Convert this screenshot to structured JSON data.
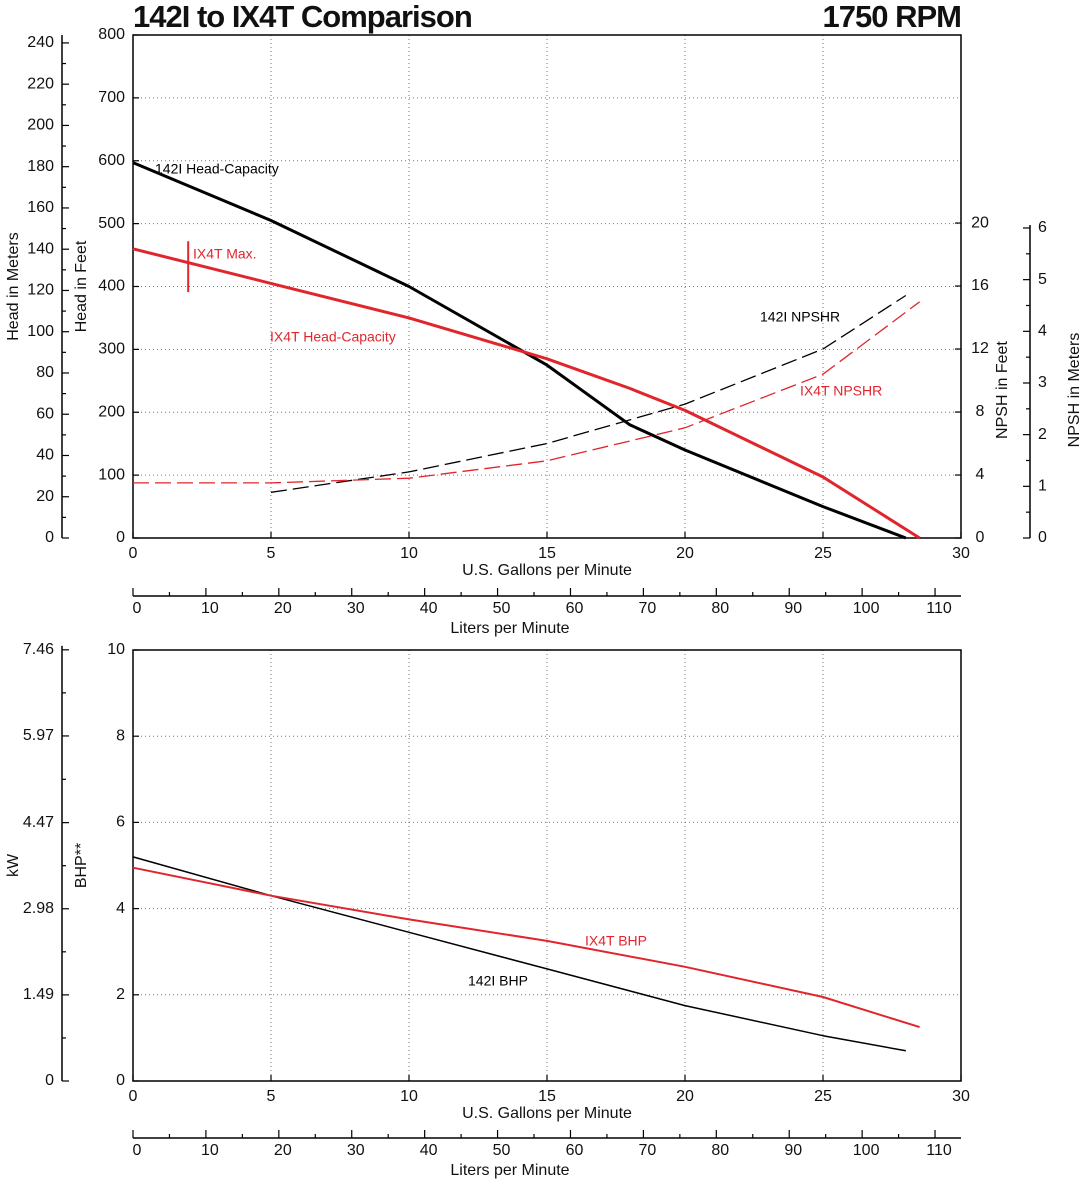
{
  "chart_data": [
    {
      "type": "line",
      "title": "142I to IX4T Comparison",
      "subtitle": "1750 RPM",
      "xlabel": "U.S. Gallons per Minute",
      "xlim": [
        0,
        30
      ],
      "xticks": [
        0,
        5,
        10,
        15,
        20,
        25,
        30
      ],
      "x2label": "Liters per Minute",
      "x2lim": [
        0,
        113.56
      ],
      "x2ticks": [
        0,
        10,
        20,
        30,
        40,
        50,
        60,
        70,
        80,
        90,
        100,
        110
      ],
      "ylabel": "Head in Feet",
      "ylim": [
        0,
        800
      ],
      "yticks": [
        0,
        100,
        200,
        300,
        400,
        500,
        600,
        700,
        800
      ],
      "y3label": "Head in Meters",
      "y3lim": [
        0,
        243.84
      ],
      "y3ticks": [
        0,
        20,
        40,
        60,
        80,
        100,
        120,
        140,
        160,
        180,
        200,
        220,
        240
      ],
      "y2label": "NPSH in Feet",
      "y2lim": [
        0,
        31.94
      ],
      "y2ticks": [
        0,
        4,
        8,
        12,
        16,
        20
      ],
      "y4label": "NPSH in Meters",
      "y4lim": [
        0,
        9.735
      ],
      "y4ticks": [
        0,
        1,
        2,
        3,
        4,
        5,
        6
      ],
      "grid": true,
      "series": [
        {
          "name": "142I Head-Capacity",
          "color": "#000000",
          "dashed": false,
          "width": 3,
          "x": [
            0,
            5,
            10,
            15,
            18,
            20,
            25,
            28
          ],
          "values": [
            597,
            505,
            400,
            275,
            180,
            140,
            50,
            0
          ]
        },
        {
          "name": "IX4T Head-Capacity",
          "color": "#e0262c",
          "dashed": false,
          "width": 3,
          "x": [
            0,
            5,
            10,
            15,
            18,
            20,
            25,
            28.5
          ],
          "values": [
            460,
            405,
            350,
            285,
            238,
            203,
            97,
            0
          ]
        },
        {
          "name": "142I NPSHR",
          "color": "#000000",
          "dashed": true,
          "width": 1.3,
          "axis": "y2",
          "x": [
            5,
            10,
            15,
            20,
            25,
            28
          ],
          "values": [
            2.9,
            4.2,
            6.0,
            8.5,
            12.0,
            15.4
          ]
        },
        {
          "name": "IX4T NPSHR",
          "color": "#e0262c",
          "dashed": true,
          "width": 1.3,
          "axis": "y2",
          "x": [
            0,
            5,
            10,
            15,
            20,
            25,
            28.5
          ],
          "values": [
            3.5,
            3.5,
            3.8,
            4.9,
            7.0,
            10.4,
            15.0
          ]
        }
      ],
      "annotations": [
        {
          "text": "IX4T Max.",
          "color": "#e0262c",
          "x": 2,
          "y": [
            391,
            472
          ]
        }
      ]
    },
    {
      "type": "line",
      "xlabel": "U.S. Gallons per Minute",
      "xlim": [
        0,
        30
      ],
      "xticks": [
        0,
        5,
        10,
        15,
        20,
        25,
        30
      ],
      "x2label": "Liters per Minute",
      "x2lim": [
        0,
        113.56
      ],
      "x2ticks": [
        0,
        10,
        20,
        30,
        40,
        50,
        60,
        70,
        80,
        90,
        100,
        110
      ],
      "ylabel": "BHP**",
      "ylim": [
        0,
        10
      ],
      "yticks": [
        0,
        2,
        4,
        6,
        8,
        10
      ],
      "y3label": "kW",
      "y3lim": [
        0,
        7.457
      ],
      "y3ticks": [
        0,
        1.49,
        2.98,
        4.47,
        5.97,
        7.46
      ],
      "grid": true,
      "series": [
        {
          "name": "142I BHP",
          "color": "#000000",
          "dashed": false,
          "width": 1.5,
          "x": [
            0,
            5,
            10,
            15,
            20,
            25,
            28
          ],
          "values": [
            5.2,
            4.3,
            3.45,
            2.6,
            1.75,
            1.05,
            0.7
          ]
        },
        {
          "name": "IX4T BHP",
          "color": "#e0262c",
          "dashed": false,
          "width": 2,
          "x": [
            0,
            5,
            10,
            15,
            20,
            25,
            28.5
          ],
          "values": [
            4.95,
            4.3,
            3.75,
            3.25,
            2.65,
            1.95,
            1.25
          ]
        }
      ]
    }
  ]
}
